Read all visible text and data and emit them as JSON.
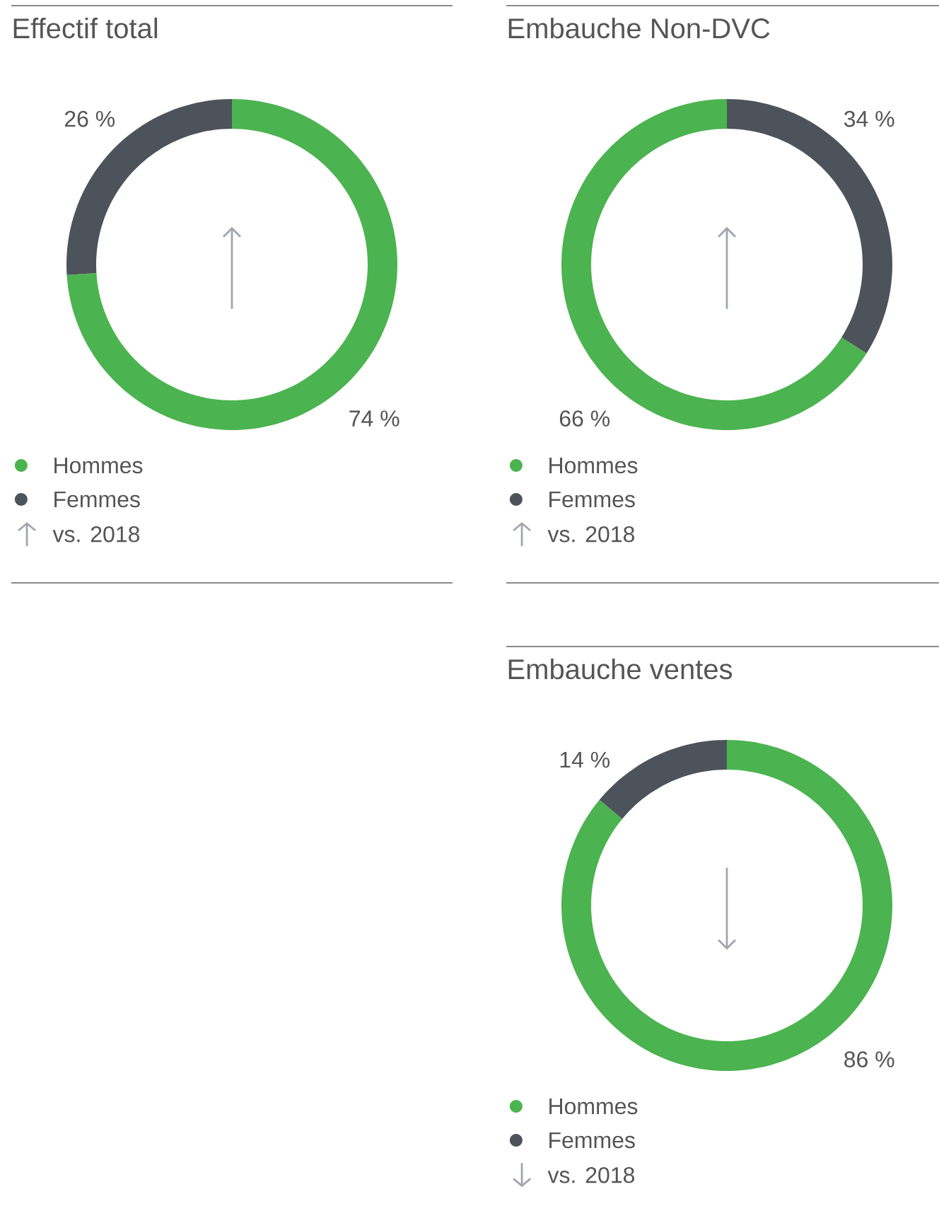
{
  "chart_data": [
    {
      "type": "donut",
      "title": "Effectif total",
      "categories": [
        "Hommes",
        "Femmes"
      ],
      "values": [
        74,
        26
      ],
      "colors": [
        "#4bb34f",
        "#4d535a"
      ],
      "value_labels": [
        "74 %",
        "26 %"
      ],
      "legend": "bottom left",
      "annotations": [
        "vs. 2018"
      ]
    },
    {
      "type": "donut",
      "title": "Embauche Non-DVC",
      "categories": [
        "Hommes",
        "Femmes"
      ],
      "values": [
        66,
        34
      ],
      "colors": [
        "#4bb34f",
        "#4d535a"
      ],
      "value_labels": [
        "66 %",
        "34 %"
      ],
      "legend": "bottom left",
      "annotations": [
        "vs. 2018"
      ]
    },
    {
      "type": "donut",
      "title": "Embauche ventes",
      "categories": [
        "Hommes",
        "Femmes"
      ],
      "values": [
        86,
        14
      ],
      "colors": [
        "#4bb34f",
        "#4d535a"
      ],
      "value_labels": [
        "86 %",
        "14 %"
      ],
      "legend": "bottom left",
      "annotations": [
        "vs. 2018"
      ]
    }
  ]
}
